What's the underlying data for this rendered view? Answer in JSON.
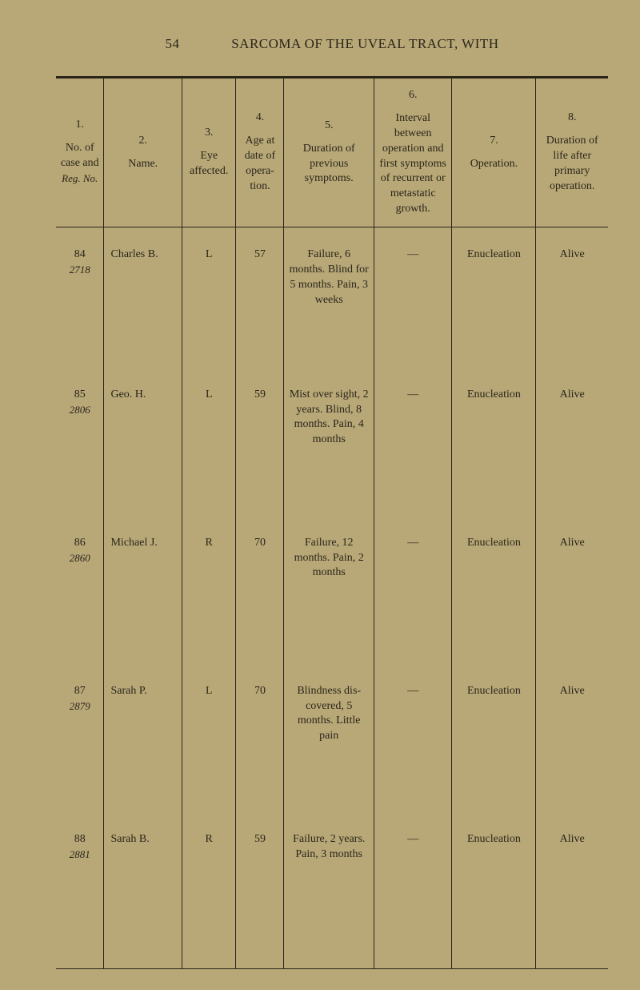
{
  "page": {
    "number": "54",
    "title": "SARCOMA OF THE UVEAL TRACT, WITH"
  },
  "columns": [
    {
      "num": "1.",
      "label": "No. of case and <span class='reg-no'>Reg. No.</span>"
    },
    {
      "num": "2.",
      "label": "Name."
    },
    {
      "num": "3.",
      "label": "Eye affected."
    },
    {
      "num": "4.",
      "label": "Age at date of opera-tion."
    },
    {
      "num": "5.",
      "label": "Duration of previous symptoms."
    },
    {
      "num": "6.",
      "label": "Interval between operation and first symptoms of recurrent or metastatic growth."
    },
    {
      "num": "7.",
      "label": "Operation."
    },
    {
      "num": "8.",
      "label": "Duration of life after primary operation."
    }
  ],
  "rows": [
    {
      "caseNo": "84",
      "regNo": "2718",
      "name": "Charles B.",
      "eye": "L",
      "age": "57",
      "duration": "Failure, 6 months. Blind for 5 months. Pain, 3 weeks",
      "interval": "—",
      "operation": "Enucleation",
      "life": "Alive"
    },
    {
      "caseNo": "85",
      "regNo": "2806",
      "name": "Geo. H.",
      "eye": "L",
      "age": "59",
      "duration": "Mist over sight, 2 years. Blind, 8 months. Pain, 4 months",
      "interval": "—",
      "operation": "Enucleation",
      "life": "Alive"
    },
    {
      "caseNo": "86",
      "regNo": "2860",
      "name": "Michael J.",
      "eye": "R",
      "age": "70",
      "duration": "Failure, 12 months. Pain, 2 months",
      "interval": "—",
      "operation": "Enucleation",
      "life": "Alive"
    },
    {
      "caseNo": "87",
      "regNo": "2879",
      "name": "Sarah P.",
      "eye": "L",
      "age": "70",
      "duration": "Blindness dis-covered, 5 months. Little pain",
      "interval": "—",
      "operation": "Enucleation",
      "life": "Alive"
    },
    {
      "caseNo": "88",
      "regNo": "2881",
      "name": "Sarah B.",
      "eye": "R",
      "age": "59",
      "duration": "Failure, 2 years. Pain, 3 months",
      "interval": "—",
      "operation": "Enucleation",
      "life": "Alive"
    }
  ]
}
